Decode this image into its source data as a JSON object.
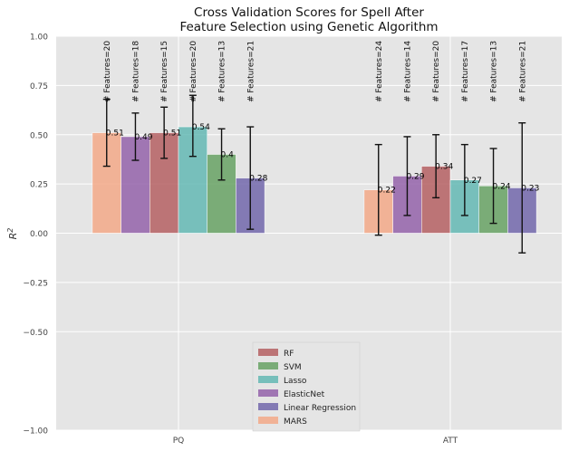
{
  "chart_data": {
    "type": "bar",
    "title": "Cross Validation Scores for Spell After\nFeature Selection using Genetic Algorithm",
    "xlabel": "",
    "ylabel": "R^2",
    "ylim": [
      -1.0,
      1.0
    ],
    "yticks": [
      "1.00",
      "0.75",
      "0.50",
      "0.25",
      "0.00",
      "−0.25",
      "−0.50",
      "−1.00"
    ],
    "ytick_values": [
      1.0,
      0.75,
      0.5,
      0.25,
      0.0,
      -0.25,
      -0.5,
      -1.0
    ],
    "categories": [
      "PQ",
      "ATT"
    ],
    "grid": true,
    "legend_position": "bottom-center",
    "series": [
      {
        "name": "MARS",
        "color": "#f4a582",
        "values": [
          0.51,
          0.22
        ],
        "err_low": [
          0.34,
          -0.01
        ],
        "err_high": [
          0.68,
          0.45
        ],
        "features": [
          "# Features=20",
          "# Features=24"
        ]
      },
      {
        "name": "ElasticNet",
        "color": "#8e5aa6",
        "values": [
          0.49,
          0.29
        ],
        "err_low": [
          0.37,
          0.09
        ],
        "err_high": [
          0.61,
          0.49
        ],
        "features": [
          "# Features=18",
          "# Features=14"
        ]
      },
      {
        "name": "RF",
        "color": "#b2585a",
        "values": [
          0.51,
          0.34
        ],
        "err_low": [
          0.38,
          0.18
        ],
        "err_high": [
          0.64,
          0.5
        ],
        "features": [
          "# Features=15",
          "# Features=20"
        ]
      },
      {
        "name": "Lasso",
        "color": "#5bb5b0",
        "values": [
          0.54,
          0.27
        ],
        "err_low": [
          0.39,
          0.09
        ],
        "err_high": [
          0.7,
          0.45
        ],
        "features": [
          "# Features=20",
          "# Features=17"
        ]
      },
      {
        "name": "SVM",
        "color": "#5f9e5b",
        "values": [
          0.4,
          0.24
        ],
        "err_low": [
          0.27,
          0.05
        ],
        "err_high": [
          0.53,
          0.43
        ],
        "features": [
          "# Features=13",
          "# Features=13"
        ]
      },
      {
        "name": "Linear Regression",
        "color": "#6a5fa8",
        "values": [
          0.28,
          0.23
        ],
        "err_low": [
          0.02,
          -0.1
        ],
        "err_high": [
          0.54,
          0.56
        ],
        "features": [
          "# Features=21",
          "# Features=21"
        ]
      }
    ],
    "legend_order": [
      "RF",
      "SVM",
      "Lasso",
      "ElasticNet",
      "Linear Regression",
      "MARS"
    ]
  }
}
